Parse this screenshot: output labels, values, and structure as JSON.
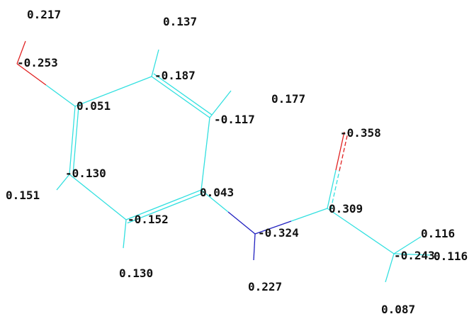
{
  "diagram": {
    "colors": {
      "carbon_bond": "#33e0e0",
      "oxygen_bond": "#e02020",
      "nitrogen_bond": "#2020c0",
      "label": "#111111",
      "background": "#ffffff"
    },
    "charges": {
      "h_on_o": "0.217",
      "h_top": "0.137",
      "o_hydroxyl": "-0.253",
      "c_top": "-0.187",
      "c_phenol": "0.051",
      "c_upper_right": "-0.117",
      "h_upper_right": "0.177",
      "o_carbonyl": "-0.358",
      "c_left": "-0.130",
      "h_left": "0.151",
      "c_ipso_n": "0.043",
      "c_carbonyl": "0.309",
      "c_bottom": "-0.152",
      "n_amide": "-0.324",
      "h_methyl_1": "0.116",
      "c_methyl": "-0.243",
      "h_methyl_2": "0.116",
      "h_bottom": "0.130",
      "h_on_n": "0.227",
      "h_methyl_3": "0.087"
    }
  }
}
